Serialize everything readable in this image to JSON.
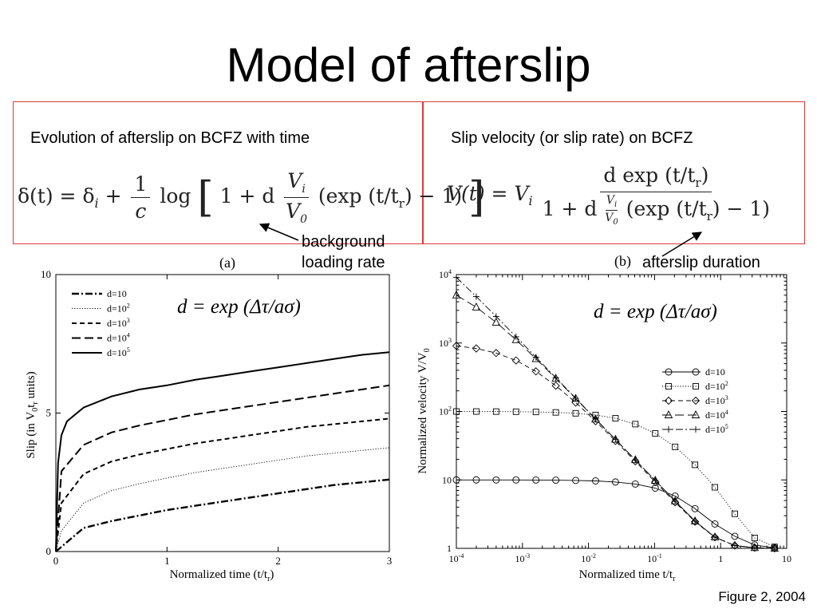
{
  "slide": {
    "title": "Model of afterslip",
    "left_caption": "Evolution of afterslip on BCFZ with time",
    "right_caption": "Slip velocity (or slip rate) on BCFZ",
    "annotation_background": [
      "background",
      "loading rate"
    ],
    "annotation_duration": "afterslip duration",
    "figure_caption": "Figure 2, 2004",
    "equation_left": {
      "lhs": "δ(t) = δ",
      "lhs_sub": "i",
      "plus": "+",
      "frac_num": "1",
      "frac_den": "c",
      "log": "log",
      "bracket_open": "[",
      "one_plus_d": "1 + d",
      "vi": "V",
      "vi_sub": "i",
      "v0": "V",
      "v0_sub": "0",
      "exp_part": "(exp (t/t",
      "exp_sub": "r",
      "exp_end": ") − 1)",
      "bracket_close": "]"
    },
    "equation_right": {
      "lhs": "V(t) = V",
      "lhs_sub": "i",
      "num": "d exp (t/t",
      "num_sub": "r",
      "num_end": ")",
      "den_start": "1 + d",
      "den_vi": "V",
      "den_vi_sub": "i",
      "den_v0": "V",
      "den_v0_sub": "0",
      "den_exp": "(exp (t/t",
      "den_exp_sub": "r",
      "den_end": ") − 1)"
    },
    "colors": {
      "box_border": "#e03a3a",
      "curve": "#000000"
    }
  },
  "chart_data": [
    {
      "type": "line",
      "panel_label": "(a)",
      "formula": "d = exp (Δτ/aσ)",
      "xlabel": "Normalized time (t/t",
      "xlabel_sub": "r",
      "xlabel_end": ")",
      "ylabel": "Slip (in V",
      "ylabel_sub1": "0",
      "ylabel_mid": "t",
      "ylabel_sub2": "r",
      "ylabel_end": " units)",
      "xlim": [
        0,
        3
      ],
      "ylim": [
        0,
        10
      ],
      "xticks": [
        "0",
        "1",
        "2",
        "3"
      ],
      "yticks": [
        "0",
        "5",
        "10"
      ],
      "legend_position": "top-left",
      "series": [
        {
          "name": "d=10",
          "d": 10,
          "style": "dash-dot",
          "x": [
            0,
            0.25,
            0.5,
            0.75,
            1,
            1.25,
            1.5,
            1.75,
            2,
            2.25,
            2.5,
            2.75,
            3
          ],
          "y": [
            0,
            0.85,
            1.1,
            1.3,
            1.5,
            1.65,
            1.8,
            1.95,
            2.1,
            2.25,
            2.4,
            2.5,
            2.6
          ]
        },
        {
          "name": "d=10",
          "sup": "2",
          "d": 100,
          "style": "dotted",
          "x": [
            0,
            0.05,
            0.25,
            0.5,
            0.75,
            1,
            1.25,
            1.5,
            1.75,
            2,
            2.25,
            2.5,
            2.75,
            3
          ],
          "y": [
            0,
            0.75,
            1.75,
            2.2,
            2.45,
            2.65,
            2.85,
            3.0,
            3.15,
            3.3,
            3.45,
            3.55,
            3.65,
            3.75
          ]
        },
        {
          "name": "d=10",
          "sup": "3",
          "d": 1000,
          "style": "dashed",
          "x": [
            0,
            0.05,
            0.25,
            0.5,
            0.75,
            1,
            1.25,
            1.5,
            1.75,
            2,
            2.25,
            2.5,
            2.75,
            3
          ],
          "y": [
            0,
            1.75,
            2.8,
            3.25,
            3.5,
            3.7,
            3.9,
            4.05,
            4.2,
            4.35,
            4.5,
            4.6,
            4.7,
            4.8
          ]
        },
        {
          "name": "d=10",
          "sup": "4",
          "d": 10000,
          "style": "long-dash",
          "x": [
            0,
            0.05,
            0.25,
            0.5,
            0.75,
            1,
            1.25,
            1.5,
            1.75,
            2,
            2.25,
            2.5,
            2.75,
            3
          ],
          "y": [
            0,
            2.9,
            3.85,
            4.3,
            4.55,
            4.75,
            4.95,
            5.1,
            5.25,
            5.4,
            5.55,
            5.7,
            5.85,
            6.0
          ]
        },
        {
          "name": "d=10",
          "sup": "5",
          "d": 100000,
          "style": "solid",
          "x": [
            0,
            0.02,
            0.05,
            0.1,
            0.25,
            0.5,
            0.75,
            1,
            1.25,
            1.5,
            1.75,
            2,
            2.25,
            2.5,
            2.75,
            3
          ],
          "y": [
            0,
            3.2,
            4.2,
            4.7,
            5.2,
            5.6,
            5.85,
            6.0,
            6.2,
            6.35,
            6.5,
            6.65,
            6.8,
            6.95,
            7.1,
            7.2
          ]
        }
      ]
    },
    {
      "type": "line",
      "panel_label": "(b)",
      "formula": "d = exp (Δτ/aσ)",
      "xlabel": "Normalized time t/t",
      "xlabel_sub": "r",
      "ylabel": "Normalized velocity V/V",
      "ylabel_sub": "0",
      "x_scale": "log",
      "y_scale": "log",
      "xlim": [
        0.0001,
        10
      ],
      "ylim": [
        1,
        10000
      ],
      "xticks": [
        {
          "base": "10",
          "exp": "-4"
        },
        {
          "base": "10",
          "exp": "-3"
        },
        {
          "base": "10",
          "exp": "-2"
        },
        {
          "base": "10",
          "exp": "-1"
        },
        {
          "base": "1",
          "exp": ""
        },
        {
          "base": "10",
          "exp": ""
        }
      ],
      "yticks": [
        {
          "base": "1",
          "exp": ""
        },
        {
          "base": "10",
          "exp": ""
        },
        {
          "base": "10",
          "exp": "2"
        },
        {
          "base": "10",
          "exp": "3"
        },
        {
          "base": "10",
          "exp": "4"
        }
      ],
      "legend_position": "right",
      "series": [
        {
          "name": "d=10",
          "marker": "circle",
          "style": "solid",
          "x": [
            0.0001,
            0.0002,
            0.0004,
            0.0008,
            0.0016,
            0.0032,
            0.0064,
            0.0128,
            0.0256,
            0.0512,
            0.1024,
            0.2048,
            0.4096,
            0.8192,
            1.6384,
            3.2768,
            6.5536
          ],
          "y": [
            10,
            10,
            9.99,
            9.98,
            9.96,
            9.91,
            9.83,
            9.66,
            9.32,
            8.71,
            7.59,
            5.8,
            3.8,
            2.27,
            1.5,
            1.12,
            1.02
          ]
        },
        {
          "name": "d=10",
          "sup": "2",
          "marker": "square",
          "style": "dotted",
          "x": [
            0.0001,
            0.0002,
            0.0004,
            0.0008,
            0.0016,
            0.0032,
            0.0064,
            0.0128,
            0.0256,
            0.0512,
            0.1024,
            0.2048,
            0.4096,
            0.8192,
            1.6384,
            3.2768,
            6.5536
          ],
          "y": [
            100,
            99.8,
            99.6,
            99.2,
            98.4,
            96.9,
            94,
            88.8,
            79.5,
            65.3,
            47.8,
            30.4,
            16.6,
            7.8,
            3.2,
            1.42,
            1.05
          ]
        },
        {
          "name": "d=10",
          "sup": "3",
          "marker": "diamond",
          "style": "dashed",
          "x": [
            0.0001,
            0.0002,
            0.0004,
            0.0008,
            0.0016,
            0.0032,
            0.0064,
            0.0128,
            0.0256,
            0.0512,
            0.1024,
            0.2048,
            0.4096,
            0.8192,
            1.6384,
            3.2768,
            6.5536
          ],
          "y": [
            909,
            833,
            714,
            556,
            385,
            238,
            135,
            72,
            37,
            18.7,
            9.3,
            4.7,
            2.45,
            1.45,
            1.1,
            1.02,
            1.0
          ]
        },
        {
          "name": "d=10",
          "sup": "4",
          "marker": "triangle",
          "style": "long-dash",
          "x": [
            0.0001,
            0.0002,
            0.0004,
            0.0008,
            0.0016,
            0.0032,
            0.0064,
            0.0128,
            0.0256,
            0.0512,
            0.1024,
            0.2048,
            0.4096,
            0.8192,
            1.6384,
            3.2768,
            6.5536
          ],
          "y": [
            5000,
            3333,
            2000,
            1111,
            588,
            303,
            154,
            77,
            39,
            19.6,
            9.8,
            4.9,
            2.5,
            1.46,
            1.1,
            1.02,
            1.0
          ]
        },
        {
          "name": "d=10",
          "sup": "5",
          "marker": "plus",
          "style": "dash-dot",
          "x": [
            0.0001,
            0.0002,
            0.0004,
            0.0008,
            0.0016,
            0.0032,
            0.0064,
            0.0128,
            0.0256,
            0.0512,
            0.1024,
            0.2048,
            0.4096,
            0.8192,
            1.6384,
            3.2768,
            6.5536
          ],
          "y": [
            9091,
            4762,
            2439,
            1235,
            621,
            311,
            156,
            78,
            39,
            19.6,
            9.8,
            4.9,
            2.5,
            1.46,
            1.1,
            1.02,
            1.0
          ]
        }
      ]
    }
  ]
}
